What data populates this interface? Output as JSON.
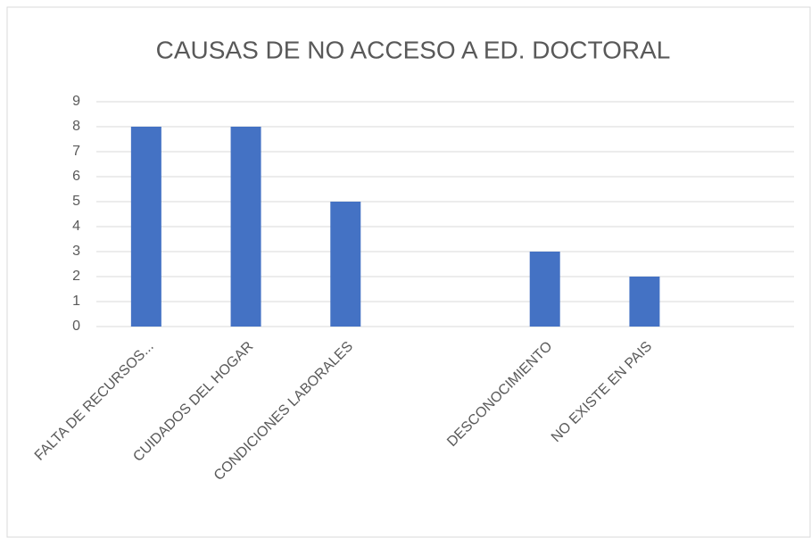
{
  "chart_data": {
    "type": "bar",
    "title": "CAUSAS DE NO ACCESO A ED. DOCTORAL",
    "categories": [
      "FALTA DE RECURSOS...",
      "CUIDADOS DEL HOGAR",
      "CONDICIONES LABORALES",
      null,
      "DESCONOCIMIENTO",
      "NO EXISTE EN PAIS",
      null
    ],
    "values": [
      8,
      8,
      5,
      null,
      3,
      2,
      null
    ],
    "color": "#4472c4",
    "ylim": [
      0,
      9
    ],
    "yticks": [
      0,
      1,
      2,
      3,
      4,
      5,
      6,
      7,
      8,
      9
    ],
    "grid": true
  }
}
